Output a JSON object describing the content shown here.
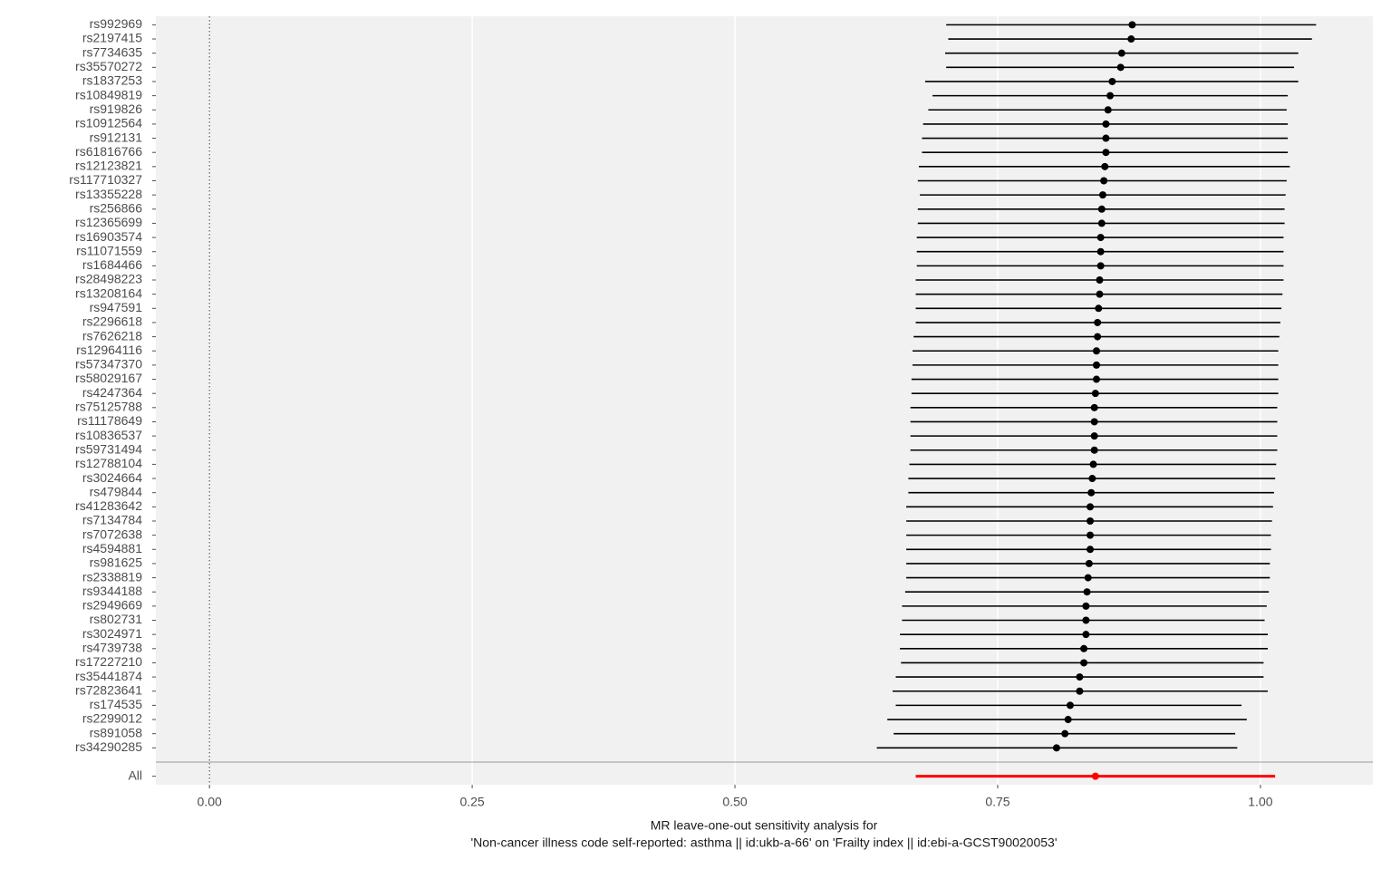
{
  "chart_data": {
    "type": "forest",
    "xlabel": [
      "MR leave-one-out sensitivity analysis for",
      "'Non-cancer illness code  self-reported: asthma || id:ukb-a-66' on 'Frailty index || id:ebi-a-GCST90020053'"
    ],
    "categories": [
      "rs992969",
      "rs2197415",
      "rs7734635",
      "rs35570272",
      "rs1837253",
      "rs10849819",
      "rs919826",
      "rs10912564",
      "rs912131",
      "rs61816766",
      "rs12123821",
      "rs117710327",
      "rs13355228",
      "rs256866",
      "rs12365699",
      "rs16903574",
      "rs11071559",
      "rs1684466",
      "rs28498223",
      "rs13208164",
      "rs947591",
      "rs2296618",
      "rs7626218",
      "rs12964116",
      "rs57347370",
      "rs58029167",
      "rs4247364",
      "rs75125788",
      "rs11178649",
      "rs10836537",
      "rs59731494",
      "rs12788104",
      "rs3024664",
      "rs479844",
      "rs41283642",
      "rs7134784",
      "rs7072638",
      "rs4594881",
      "rs981625",
      "rs2338819",
      "rs9344188",
      "rs2949669",
      "rs802731",
      "rs3024971",
      "rs4739738",
      "rs17227210",
      "rs35441874",
      "rs72823641",
      "rs174535",
      "rs2299012",
      "rs891058",
      "rs34290285",
      null,
      "All"
    ],
    "values": [
      0.878,
      0.877,
      0.868,
      0.867,
      0.859,
      0.857,
      0.855,
      0.853,
      0.853,
      0.853,
      0.852,
      0.851,
      0.85,
      0.849,
      0.849,
      0.848,
      0.848,
      0.848,
      0.847,
      0.847,
      0.846,
      0.845,
      0.845,
      0.844,
      0.844,
      0.844,
      0.843,
      0.842,
      0.842,
      0.842,
      0.842,
      0.841,
      0.84,
      0.839,
      0.838,
      0.838,
      0.838,
      0.838,
      0.837,
      0.836,
      0.835,
      0.834,
      0.834,
      0.834,
      0.832,
      0.832,
      0.828,
      0.828,
      0.819,
      0.817,
      0.814,
      0.806,
      null,
      0.843
    ],
    "lower": [
      0.701,
      0.703,
      0.7,
      0.701,
      0.681,
      0.688,
      0.684,
      0.679,
      0.678,
      0.678,
      0.675,
      0.674,
      0.676,
      0.674,
      0.674,
      0.673,
      0.673,
      0.673,
      0.672,
      0.672,
      0.672,
      0.672,
      0.67,
      0.669,
      0.669,
      0.668,
      0.668,
      0.667,
      0.667,
      0.667,
      0.667,
      0.666,
      0.665,
      0.665,
      0.663,
      0.663,
      0.663,
      0.663,
      0.663,
      0.663,
      0.662,
      0.659,
      0.659,
      0.657,
      0.657,
      0.658,
      0.653,
      0.65,
      0.653,
      0.645,
      0.651,
      0.635,
      null,
      0.672
    ],
    "upper": [
      1.053,
      1.049,
      1.036,
      1.032,
      1.036,
      1.026,
      1.025,
      1.026,
      1.026,
      1.026,
      1.028,
      1.025,
      1.024,
      1.023,
      1.023,
      1.022,
      1.022,
      1.022,
      1.022,
      1.021,
      1.02,
      1.019,
      1.018,
      1.017,
      1.017,
      1.017,
      1.017,
      1.016,
      1.016,
      1.016,
      1.016,
      1.015,
      1.014,
      1.013,
      1.012,
      1.011,
      1.01,
      1.01,
      1.009,
      1.009,
      1.008,
      1.006,
      1.004,
      1.007,
      1.007,
      1.003,
      1.003,
      1.007,
      0.982,
      0.987,
      0.976,
      0.978,
      null,
      1.014
    ],
    "colors": [
      "#000000",
      "#000000",
      "#000000",
      "#000000",
      "#000000",
      "#000000",
      "#000000",
      "#000000",
      "#000000",
      "#000000",
      "#000000",
      "#000000",
      "#000000",
      "#000000",
      "#000000",
      "#000000",
      "#000000",
      "#000000",
      "#000000",
      "#000000",
      "#000000",
      "#000000",
      "#000000",
      "#000000",
      "#000000",
      "#000000",
      "#000000",
      "#000000",
      "#000000",
      "#000000",
      "#000000",
      "#000000",
      "#000000",
      "#000000",
      "#000000",
      "#000000",
      "#000000",
      "#000000",
      "#000000",
      "#000000",
      "#000000",
      "#000000",
      "#000000",
      "#000000",
      "#000000",
      "#000000",
      "#000000",
      "#000000",
      "#000000",
      "#000000",
      "#000000",
      "#000000",
      null,
      "#ff0000"
    ],
    "xlim": [
      -0.051,
      1.107
    ],
    "xticks": [
      {
        "value": 0,
        "label": "0.00"
      },
      {
        "value": 0.25,
        "label": "0.25"
      },
      {
        "value": 0.5,
        "label": "0.50"
      },
      {
        "value": 0.75,
        "label": "0.75"
      },
      {
        "value": 1,
        "label": "1.00"
      }
    ],
    "ref_line": 0,
    "grid": true
  }
}
